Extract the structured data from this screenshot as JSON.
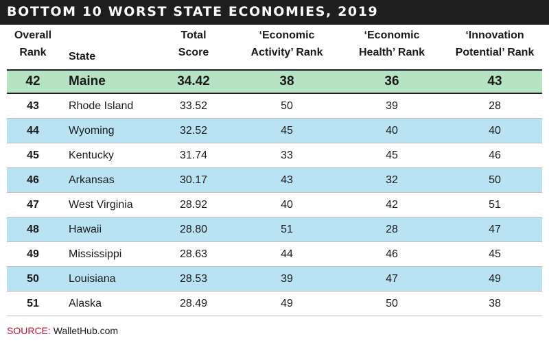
{
  "title": "BOTTOM 10 WORST STATE ECONOMIES, 2019",
  "headers": {
    "rank": "Overall Rank",
    "state": "State",
    "score": "Total Score",
    "economic_activity": "‘Economic Activity’ Rank",
    "economic_health": "‘Economic Health’ Rank",
    "innovation_potential": "‘Innovation Potential’ Rank"
  },
  "header_lines": {
    "rank": [
      "Overall",
      "Rank"
    ],
    "state": [
      "State"
    ],
    "score": [
      "Total",
      "Score"
    ],
    "economic_activity": [
      "‘Economic",
      "Activity’ Rank"
    ],
    "economic_health": [
      "‘Economic",
      "Health’ Rank"
    ],
    "innovation_potential": [
      "‘Innovation",
      "Potential’ Rank"
    ]
  },
  "rows": [
    {
      "rank": "42",
      "state": "Maine",
      "score": "34.42",
      "ea": "38",
      "eh": "36",
      "ip": "43"
    },
    {
      "rank": "43",
      "state": "Rhode Island",
      "score": "33.52",
      "ea": "50",
      "eh": "39",
      "ip": "28"
    },
    {
      "rank": "44",
      "state": "Wyoming",
      "score": "32.52",
      "ea": "45",
      "eh": "40",
      "ip": "40"
    },
    {
      "rank": "45",
      "state": "Kentucky",
      "score": "31.74",
      "ea": "33",
      "eh": "45",
      "ip": "46"
    },
    {
      "rank": "46",
      "state": "Arkansas",
      "score": "30.17",
      "ea": "43",
      "eh": "32",
      "ip": "50"
    },
    {
      "rank": "47",
      "state": "West Virginia",
      "score": "28.92",
      "ea": "40",
      "eh": "42",
      "ip": "51"
    },
    {
      "rank": "48",
      "state": "Hawaii",
      "score": "28.80",
      "ea": "51",
      "eh": "28",
      "ip": "47"
    },
    {
      "rank": "49",
      "state": "Mississippi",
      "score": "28.63",
      "ea": "44",
      "eh": "46",
      "ip": "45"
    },
    {
      "rank": "50",
      "state": "Louisiana",
      "score": "28.53",
      "ea": "39",
      "eh": "47",
      "ip": "49"
    },
    {
      "rank": "51",
      "state": "Alaska",
      "score": "28.49",
      "ea": "49",
      "eh": "50",
      "ip": "38"
    }
  ],
  "highlighted_row": "Maine",
  "source": {
    "label": "SOURCE:",
    "value": "WalletHub.com"
  },
  "colors": {
    "title_bg": "#1e1e1e",
    "highlight_row": "#b6e3c3",
    "alternate_row": "#b9e2f3",
    "source_label": "#c8102e"
  }
}
